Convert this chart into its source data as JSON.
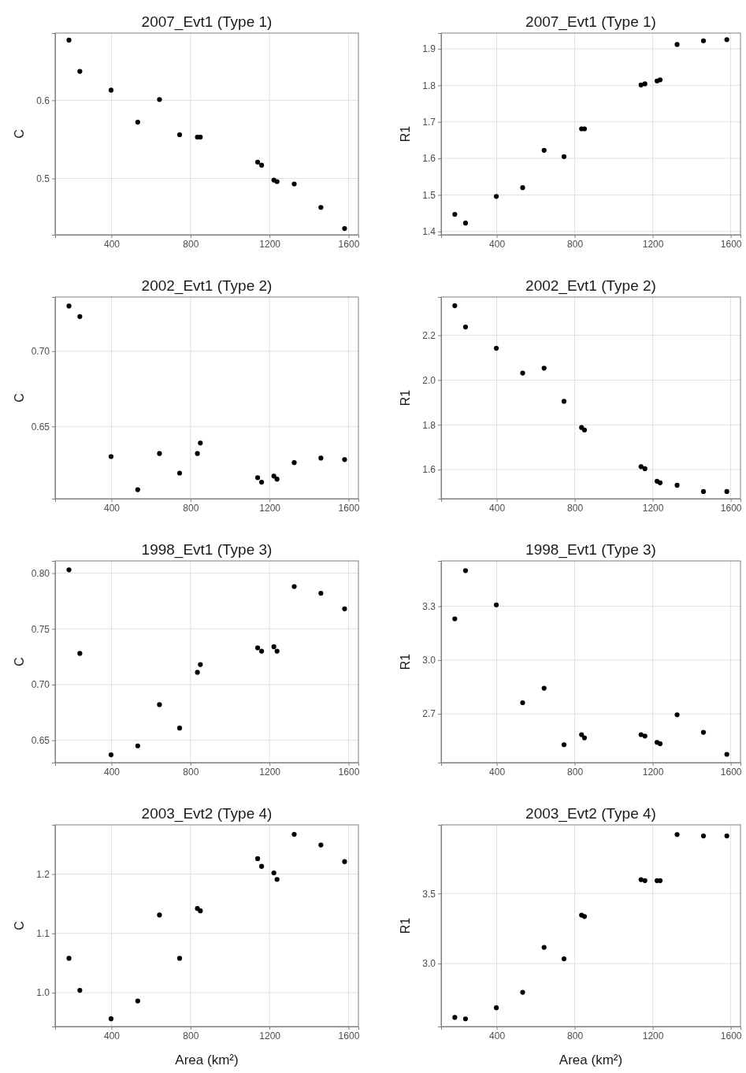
{
  "chart_data": [
    {
      "type": "scatter",
      "title": "2007_Evt1 (Type 1)",
      "ylabel": "C",
      "marker": "circle",
      "grid": true,
      "xlim": [
        115,
        1650
      ],
      "xticks": [
        400,
        800,
        1200,
        1600
      ],
      "ylim": [
        0.428,
        0.686
      ],
      "yticks": [
        0.5,
        0.6
      ],
      "x": [
        185,
        240,
        398,
        533,
        643,
        745,
        835,
        850,
        1140,
        1160,
        1222,
        1238,
        1325,
        1460,
        1580
      ],
      "series": [
        {
          "color": "#000000",
          "values": [
            0.677,
            0.637,
            0.613,
            0.572,
            0.601,
            0.556,
            0.553,
            0.553,
            0.521,
            0.517,
            0.498,
            0.496,
            0.493,
            0.463,
            0.436
          ]
        }
      ]
    },
    {
      "type": "scatter",
      "title": "2007_Evt1 (Type 1)",
      "ylabel": "R1",
      "marker": "circle",
      "grid": true,
      "xlim": [
        115,
        1650
      ],
      "xticks": [
        400,
        800,
        1200,
        1600
      ],
      "ylim": [
        1.391,
        1.943
      ],
      "yticks": [
        1.4,
        1.5,
        1.6,
        1.7,
        1.8,
        1.9
      ],
      "x": [
        185,
        240,
        398,
        533,
        643,
        745,
        835,
        850,
        1140,
        1160,
        1222,
        1238,
        1325,
        1460,
        1580
      ],
      "series": [
        {
          "color": "#000000",
          "values": [
            1.447,
            1.423,
            1.496,
            1.52,
            1.622,
            1.605,
            1.681,
            1.681,
            1.801,
            1.804,
            1.812,
            1.815,
            1.912,
            1.922,
            1.925
          ]
        }
      ]
    },
    {
      "type": "scatter",
      "title": "2002_Evt1 (Type 2)",
      "ylabel": "C",
      "marker": "circle",
      "grid": true,
      "xlim": [
        115,
        1650
      ],
      "xticks": [
        400,
        800,
        1200,
        1600
      ],
      "ylim": [
        0.602,
        0.736
      ],
      "yticks": [
        {
          "value": 0.65,
          "label": "0.65"
        },
        {
          "value": 0.7,
          "label": "0.70"
        }
      ],
      "x": [
        185,
        240,
        398,
        533,
        643,
        745,
        835,
        850,
        1140,
        1160,
        1222,
        1238,
        1325,
        1460,
        1580
      ],
      "series": [
        {
          "color": "#000000",
          "values": [
            0.73,
            0.723,
            0.63,
            0.608,
            0.632,
            0.619,
            0.632,
            0.639,
            0.616,
            0.613,
            0.617,
            0.615,
            0.626,
            0.629,
            0.628
          ]
        }
      ]
    },
    {
      "type": "scatter",
      "title": "2002_Evt1 (Type 2)",
      "ylabel": "R1",
      "marker": "circle",
      "grid": true,
      "xlim": [
        115,
        1650
      ],
      "xticks": [
        400,
        800,
        1200,
        1600
      ],
      "ylim": [
        1.47,
        2.371
      ],
      "yticks": [
        1.6,
        1.8,
        {
          "value": 2.0,
          "label": "2.0"
        },
        2.2
      ],
      "x": [
        185,
        240,
        398,
        533,
        643,
        745,
        835,
        850,
        1140,
        1160,
        1222,
        1238,
        1325,
        1460,
        1580
      ],
      "series": [
        {
          "color": "#000000",
          "values": [
            2.332,
            2.237,
            2.142,
            2.031,
            2.053,
            1.905,
            1.788,
            1.777,
            1.613,
            1.604,
            1.548,
            1.541,
            1.53,
            1.502,
            1.502
          ]
        }
      ]
    },
    {
      "type": "scatter",
      "title": "1998_Evt1 (Type 3)",
      "ylabel": "C",
      "marker": "circle",
      "grid": true,
      "xlim": [
        115,
        1650
      ],
      "xticks": [
        400,
        800,
        1200,
        1600
      ],
      "ylim": [
        0.63,
        0.811
      ],
      "yticks": [
        0.65,
        {
          "value": 0.7,
          "label": "0.70"
        },
        0.75,
        {
          "value": 0.8,
          "label": "0.80"
        }
      ],
      "x": [
        185,
        240,
        398,
        533,
        643,
        745,
        835,
        850,
        1140,
        1160,
        1222,
        1238,
        1325,
        1460,
        1580
      ],
      "series": [
        {
          "color": "#000000",
          "values": [
            0.803,
            0.728,
            0.637,
            0.645,
            0.682,
            0.661,
            0.711,
            0.718,
            0.733,
            0.73,
            0.734,
            0.73,
            0.788,
            0.782,
            0.768
          ]
        }
      ]
    },
    {
      "type": "scatter",
      "title": "1998_Evt1 (Type 3)",
      "ylabel": "R1",
      "marker": "circle",
      "grid": true,
      "xlim": [
        115,
        1650
      ],
      "xticks": [
        400,
        800,
        1200,
        1600
      ],
      "ylim": [
        2.428,
        3.553
      ],
      "yticks": [
        2.7,
        {
          "value": 3.0,
          "label": "3.0"
        },
        3.3
      ],
      "x": [
        185,
        240,
        398,
        533,
        643,
        745,
        835,
        850,
        1140,
        1160,
        1222,
        1238,
        1325,
        1460,
        1580
      ],
      "series": [
        {
          "color": "#000000",
          "values": [
            3.23,
            3.499,
            3.308,
            2.762,
            2.843,
            2.528,
            2.584,
            2.566,
            2.584,
            2.576,
            2.541,
            2.533,
            2.695,
            2.597,
            2.474
          ]
        }
      ]
    },
    {
      "type": "scatter",
      "title": "2003_Evt2 (Type 4)",
      "xlabel": "Area (km²)",
      "ylabel": "C",
      "marker": "circle",
      "grid": true,
      "xlim": [
        115,
        1650
      ],
      "xticks": [
        400,
        800,
        1200,
        1600
      ],
      "ylim": [
        0.943,
        1.283
      ],
      "yticks": [
        {
          "value": 1.0,
          "label": "1.0"
        },
        1.1,
        1.2
      ],
      "x": [
        185,
        240,
        398,
        533,
        643,
        745,
        835,
        850,
        1140,
        1160,
        1222,
        1238,
        1325,
        1460,
        1580
      ],
      "series": [
        {
          "color": "#000000",
          "values": [
            1.058,
            1.004,
            0.956,
            0.986,
            1.131,
            1.058,
            1.142,
            1.138,
            1.226,
            1.213,
            1.202,
            1.191,
            1.267,
            1.249,
            1.221
          ]
        }
      ]
    },
    {
      "type": "scatter",
      "title": "2003_Evt2 (Type 4)",
      "xlabel": "Area (km²)",
      "ylabel": "R1",
      "marker": "circle",
      "grid": true,
      "xlim": [
        115,
        1650
      ],
      "xticks": [
        400,
        800,
        1200,
        1600
      ],
      "ylim": [
        2.551,
        3.99
      ],
      "yticks": [
        {
          "value": 3.0,
          "label": "3.0"
        },
        3.5
      ],
      "x": [
        185,
        240,
        398,
        533,
        643,
        745,
        835,
        850,
        1140,
        1160,
        1222,
        1238,
        1325,
        1460,
        1580
      ],
      "series": [
        {
          "color": "#000000",
          "values": [
            2.616,
            2.606,
            2.685,
            2.795,
            3.116,
            3.034,
            3.346,
            3.336,
            3.599,
            3.592,
            3.592,
            3.592,
            3.921,
            3.911,
            3.911
          ]
        }
      ]
    }
  ]
}
